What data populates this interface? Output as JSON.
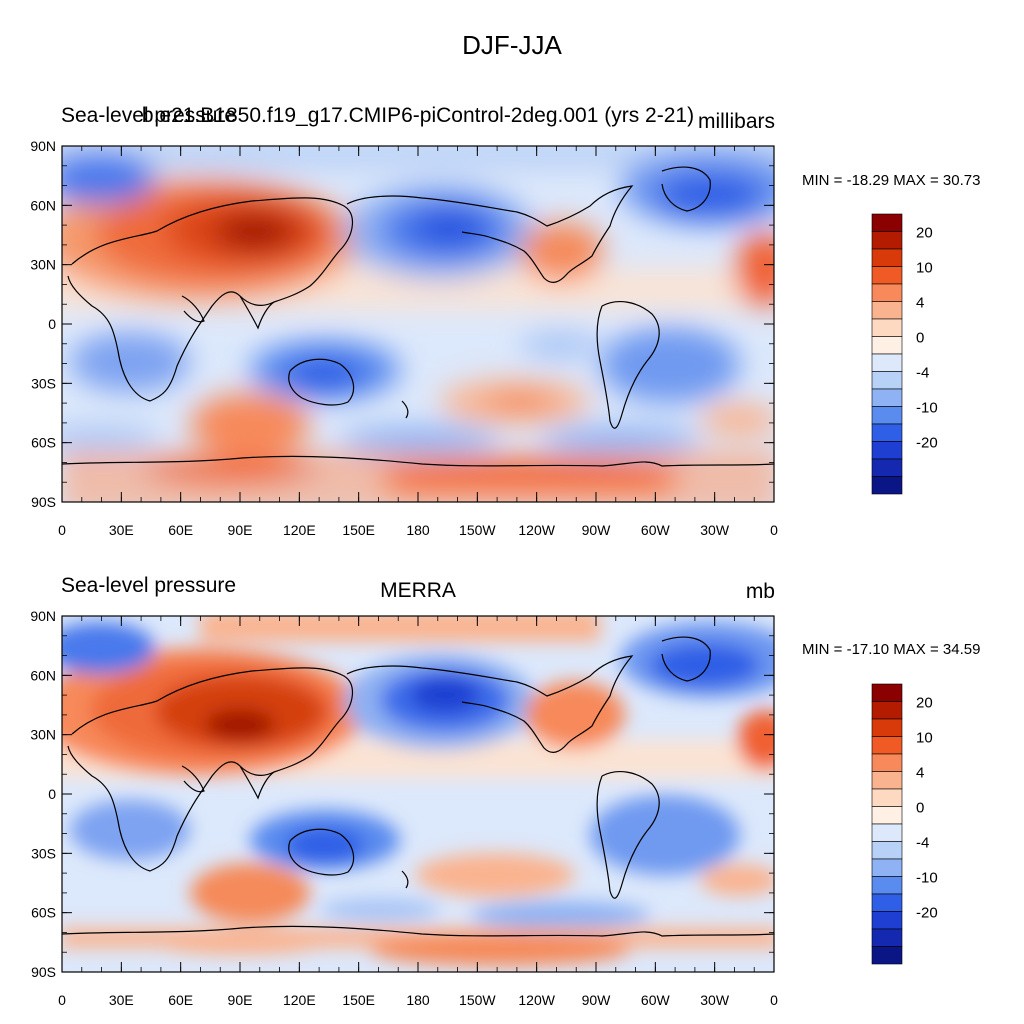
{
  "title": "DJF-JJA",
  "panels": [
    {
      "left_label": "Sea-level pressure",
      "center_label": "b.e21.B1850.f19_g17.CMIP6-piControl-2deg.001 (yrs 2-21)",
      "right_label": "millibars",
      "minmax": "MIN = -18.29 MAX =  30.73"
    },
    {
      "left_label": "Sea-level pressure",
      "center_label": "MERRA",
      "right_label": "mb",
      "minmax": "MIN = -17.10 MAX =  34.59"
    }
  ],
  "lat_ticks": [
    "90N",
    "60N",
    "30N",
    "0",
    "30S",
    "60S",
    "90S"
  ],
  "lon_ticks": [
    "0",
    "30E",
    "60E",
    "90E",
    "120E",
    "150E",
    "180",
    "150W",
    "120W",
    "90W",
    "60W",
    "30W",
    "0"
  ],
  "colorbar": {
    "labels": [
      "20",
      "10",
      "4",
      "0",
      "-4",
      "-10",
      "-20"
    ],
    "colors": [
      "#8b0000",
      "#b31c00",
      "#d93a0a",
      "#f05a25",
      "#f7895a",
      "#fab38f",
      "#fdd9c2",
      "#fff0e6",
      "#dde9fb",
      "#b8d1f7",
      "#8eb2f3",
      "#5a8bef",
      "#2f5fe6",
      "#1e3fd2",
      "#1428b0",
      "#0a1686"
    ]
  }
}
